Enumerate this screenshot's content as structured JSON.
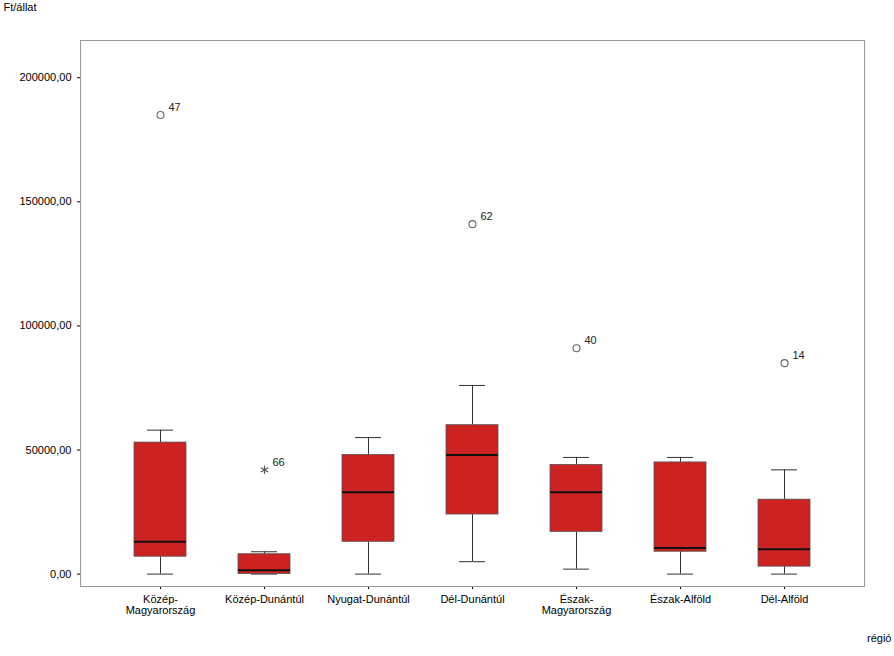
{
  "chart_data": {
    "type": "box",
    "xlabel": "régió",
    "ylabel": "Ft/állat",
    "color": "#cc2222",
    "ylim": [
      -5000,
      215000
    ],
    "yticks": [
      {
        "value": 0,
        "label": "0,00"
      },
      {
        "value": 50000,
        "label": "50000,00"
      },
      {
        "value": 100000,
        "label": "100000,00"
      },
      {
        "value": 150000,
        "label": "150000,00"
      },
      {
        "value": 200000,
        "label": "200000,00"
      }
    ],
    "grid": false,
    "categories": [
      "Közép-\nMagyarország",
      "Közép-Dunántúl",
      "Nyugat-Dunántúl",
      "Dél-Dunántúl",
      "Észak-\nMagyarország",
      "Észak-Alföld",
      "Dél-Alföld"
    ],
    "boxes": [
      {
        "q1": 7000,
        "median": 13000,
        "q3": 53000,
        "whislo": 0,
        "whishi": 58000,
        "outliers": [
          185000
        ],
        "outlier_labels": [
          "47"
        ],
        "near_outliers": [],
        "near_outlier_labels": []
      },
      {
        "q1": 0,
        "median": 1500,
        "q3": 8000,
        "whislo": 0,
        "whishi": 9000,
        "outliers": [],
        "outlier_labels": [],
        "near_outliers": [
          42000
        ],
        "near_outlier_labels": [
          "66"
        ]
      },
      {
        "q1": 13000,
        "median": 33000,
        "q3": 48000,
        "whislo": 0,
        "whishi": 55000,
        "outliers": [],
        "outlier_labels": [],
        "near_outliers": [],
        "near_outlier_labels": []
      },
      {
        "q1": 24000,
        "median": 48000,
        "q3": 60000,
        "whislo": 5000,
        "whishi": 76000,
        "outliers": [
          141000
        ],
        "outlier_labels": [
          "62"
        ],
        "near_outliers": [],
        "near_outlier_labels": []
      },
      {
        "q1": 17000,
        "median": 33000,
        "q3": 44000,
        "whislo": 2000,
        "whishi": 47000,
        "outliers": [
          91000
        ],
        "outlier_labels": [
          "40"
        ],
        "near_outliers": [],
        "near_outlier_labels": []
      },
      {
        "q1": 9000,
        "median": 10500,
        "q3": 45000,
        "whislo": 0,
        "whishi": 47000,
        "outliers": [],
        "outlier_labels": [],
        "near_outliers": [],
        "near_outlier_labels": []
      },
      {
        "q1": 3000,
        "median": 10000,
        "q3": 30000,
        "whislo": 0,
        "whishi": 42000,
        "outliers": [
          85000
        ],
        "outlier_labels": [
          "14"
        ],
        "near_outliers": [],
        "near_outlier_labels": []
      }
    ]
  }
}
